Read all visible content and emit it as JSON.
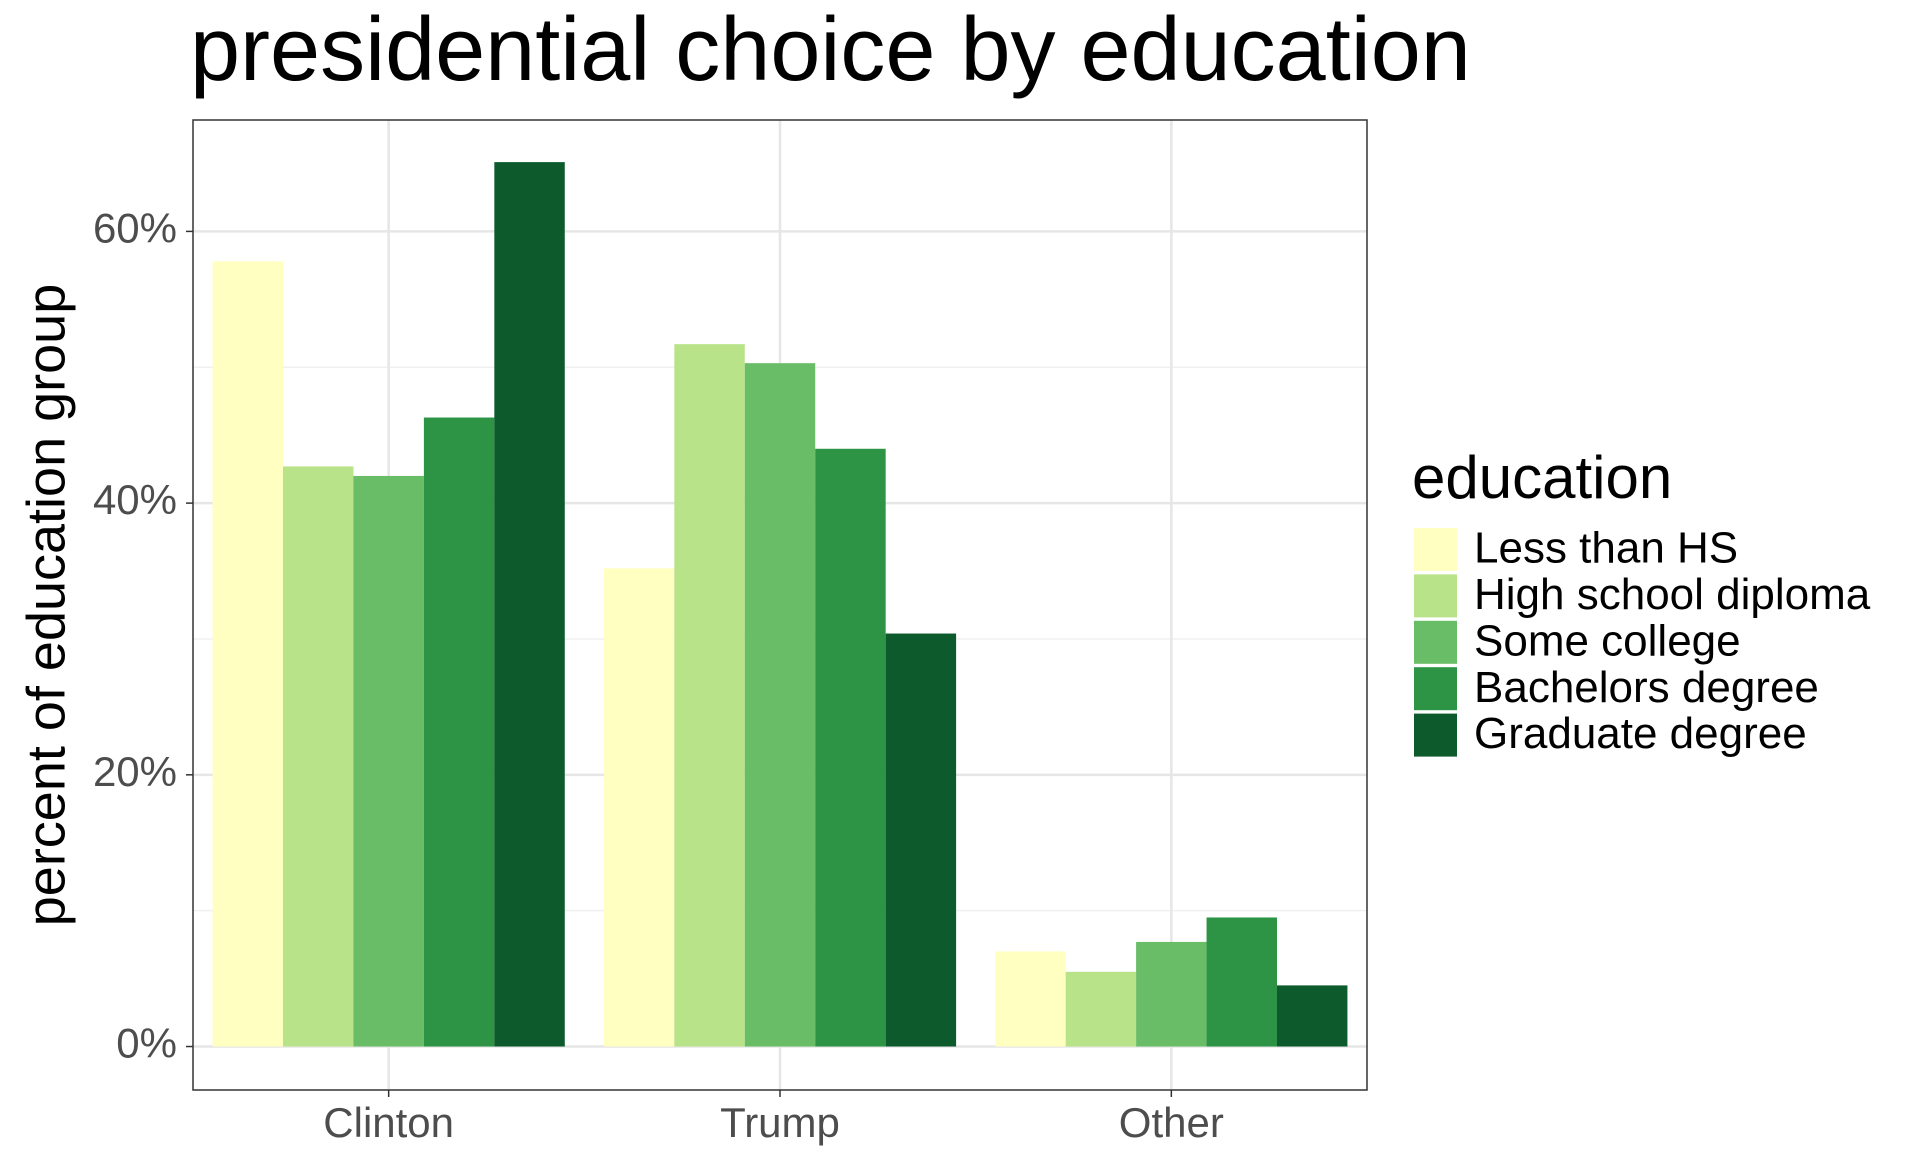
{
  "chart_data": {
    "type": "grouped_bar",
    "title": "presidential choice by education",
    "y_label": "percent of education group",
    "legend_title": "education",
    "legend_position": "right",
    "categories": [
      "Clinton",
      "Trump",
      "Other"
    ],
    "series": [
      {
        "name": "Less than HS",
        "color": "#ffffc2",
        "values": [
          57.8,
          35.2,
          7.0
        ]
      },
      {
        "name": "High school diploma",
        "color": "#b8e389",
        "values": [
          42.7,
          51.7,
          5.5
        ]
      },
      {
        "name": "Some college",
        "color": "#68bd66",
        "values": [
          42.0,
          50.3,
          7.7
        ]
      },
      {
        "name": "Bachelors degree",
        "color": "#2c9444",
        "values": [
          46.3,
          44.0,
          9.5
        ]
      },
      {
        "name": "Graduate degree",
        "color": "#0d5a2c",
        "values": [
          65.1,
          30.4,
          4.5
        ]
      }
    ],
    "ylim": [
      -3.2,
      68.2
    ],
    "yticks": [
      {
        "value": 0,
        "label": "0%"
      },
      {
        "value": 20,
        "label": "20%"
      },
      {
        "value": 40,
        "label": "40%"
      },
      {
        "value": 60,
        "label": "60%"
      }
    ],
    "grid": true
  }
}
